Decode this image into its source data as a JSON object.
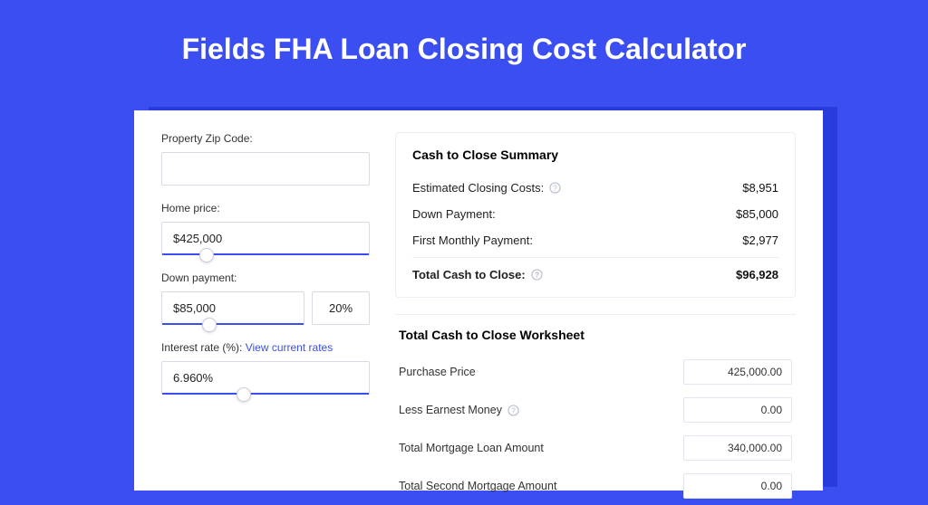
{
  "colors": {
    "page_bg": "#3a4ef2",
    "shadow_bg": "#2a3bdc",
    "card_bg": "#ffffff",
    "border": "#d8dbe6",
    "accent": "#3a4ef2",
    "text": "#222222"
  },
  "title": "Fields FHA Loan Closing Cost Calculator",
  "form": {
    "zip": {
      "label": "Property Zip Code:",
      "value": ""
    },
    "home_price": {
      "label": "Home price:",
      "value": "$425,000",
      "thumb_pct": 18
    },
    "down_payment": {
      "label": "Down payment:",
      "value": "$85,000",
      "pct": "20%",
      "thumb_pct": 28
    },
    "interest": {
      "label": "Interest rate (%):",
      "link": "View current rates",
      "value": "6.960%",
      "thumb_pct": 36
    }
  },
  "summary": {
    "title": "Cash to Close Summary",
    "rows": [
      {
        "label": "Estimated Closing Costs:",
        "value": "$8,951",
        "help": true,
        "bold": false
      },
      {
        "label": "Down Payment:",
        "value": "$85,000",
        "help": false,
        "bold": false
      },
      {
        "label": "First Monthly Payment:",
        "value": "$2,977",
        "help": false,
        "bold": false
      },
      {
        "label": "Total Cash to Close:",
        "value": "$96,928",
        "help": true,
        "bold": true
      }
    ]
  },
  "worksheet": {
    "title": "Total Cash to Close Worksheet",
    "rows": [
      {
        "label": "Purchase Price",
        "value": "425,000.00",
        "help": false
      },
      {
        "label": "Less Earnest Money",
        "value": "0.00",
        "help": true
      },
      {
        "label": "Total Mortgage Loan Amount",
        "value": "340,000.00",
        "help": false
      },
      {
        "label": "Total Second Mortgage Amount",
        "value": "0.00",
        "help": false
      }
    ]
  }
}
